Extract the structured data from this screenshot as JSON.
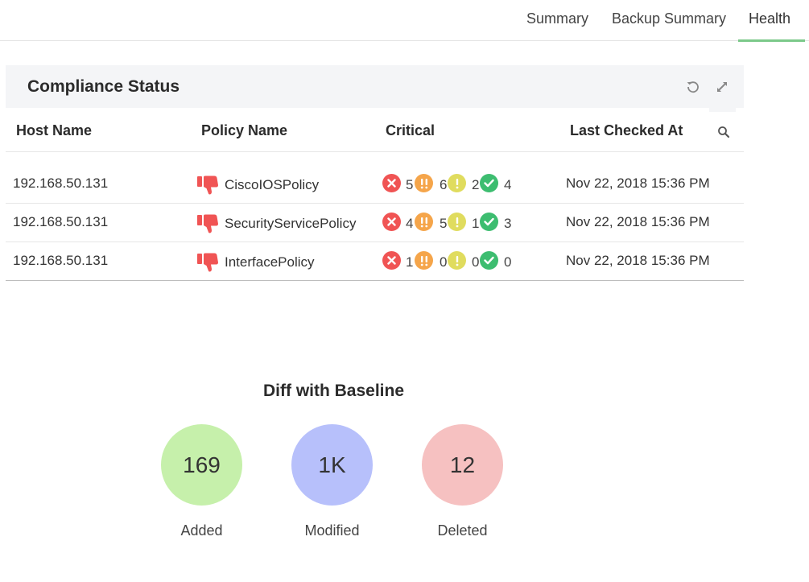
{
  "tabs": [
    {
      "label": "Summary"
    },
    {
      "label": "Backup Summary"
    },
    {
      "label": "Health",
      "active": true
    }
  ],
  "compliance": {
    "title": "Compliance Status",
    "columns": {
      "host": "Host Name",
      "policy": "Policy Name",
      "critical": "Critical",
      "last_checked": "Last Checked At"
    },
    "rows": [
      {
        "host": "192.168.50.131",
        "policy": "CiscoIOSPolicy",
        "critical": "5",
        "major": "6",
        "warning": "2",
        "ok": "4",
        "last_checked": "Nov 22, 2018 15:36 PM"
      },
      {
        "host": "192.168.50.131",
        "policy": "SecurityServicePolicy",
        "critical": "4",
        "major": "5",
        "warning": "1",
        "ok": "3",
        "last_checked": "Nov 22, 2018 15:36 PM"
      },
      {
        "host": "192.168.50.131",
        "policy": "InterfacePolicy",
        "critical": "1",
        "major": "0",
        "warning": "0",
        "ok": "0",
        "last_checked": "Nov 22, 2018 15:36 PM"
      }
    ],
    "icons": {
      "refresh": "refresh-icon",
      "expand": "expand-icon",
      "search": "search-icon",
      "policy_status": "thumbs-down-icon"
    },
    "colors": {
      "critical": "#f05454",
      "major": "#f5a54a",
      "warning": "#e0dc5e",
      "ok": "#3dbd70",
      "thumbs_down": "#f05454",
      "active_tab": "#7cc98a"
    }
  },
  "diff": {
    "title": "Diff with Baseline",
    "items": [
      {
        "value": "169",
        "label": "Added",
        "color": "#c6f0ab"
      },
      {
        "value": "1K",
        "label": "Modified",
        "color": "#b7c0fb"
      },
      {
        "value": "12",
        "label": "Deleted",
        "color": "#f6c1c1"
      }
    ]
  }
}
